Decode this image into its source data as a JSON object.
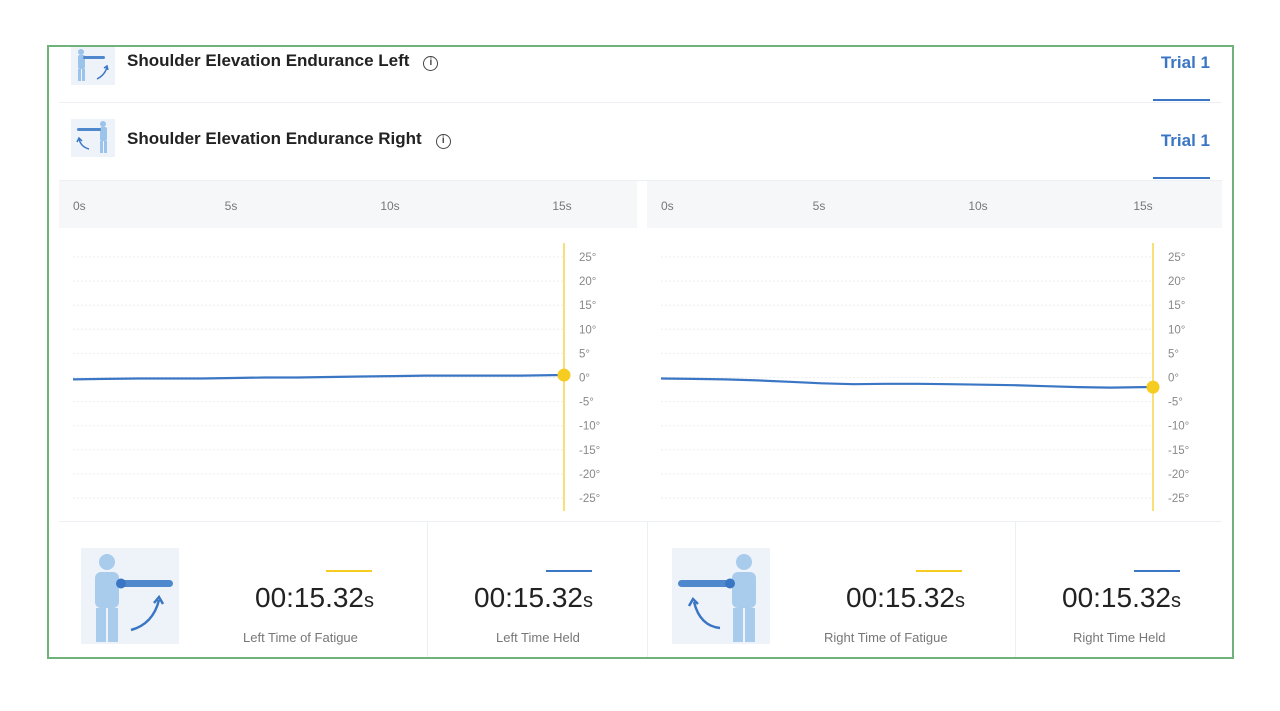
{
  "rows": [
    {
      "title": "Shoulder Elevation Endurance Left",
      "trial": "Trial 1"
    },
    {
      "title": "Shoulder Elevation Endurance Right",
      "trial": "Trial 1"
    }
  ],
  "colors": {
    "accent": "#3a76c4",
    "marker": "#f5cc1f",
    "frame": "#6fb37a"
  },
  "icons": {
    "info": "info-icon",
    "left_figure": "left-shoulder-figure-icon",
    "right_figure": "right-shoulder-figure-icon"
  },
  "chart_data": [
    {
      "type": "line",
      "x_ticks": [
        "0s",
        "5s",
        "10s",
        "15s"
      ],
      "y_ticks": [
        "25°",
        "20°",
        "15°",
        "10°",
        "5°",
        "0°",
        "-5°",
        "-10°",
        "-15°",
        "-20°",
        "-25°"
      ],
      "xlim": [
        0,
        15.32
      ],
      "ylim": [
        -25,
        25
      ],
      "grid": true,
      "series": [
        {
          "x": [
            0,
            1,
            2,
            3,
            4,
            5,
            6,
            7,
            8,
            9,
            10,
            11,
            12,
            13,
            14,
            15,
            15.32
          ],
          "y": [
            -0.4,
            -0.3,
            -0.2,
            -0.2,
            -0.2,
            -0.1,
            0,
            0,
            0.1,
            0.2,
            0.3,
            0.4,
            0.4,
            0.4,
            0.4,
            0.5,
            0.5
          ]
        }
      ],
      "end_marker": {
        "x": 15.32,
        "y": 0.5
      }
    },
    {
      "type": "line",
      "x_ticks": [
        "0s",
        "5s",
        "10s",
        "15s"
      ],
      "y_ticks": [
        "25°",
        "20°",
        "15°",
        "10°",
        "5°",
        "0°",
        "-5°",
        "-10°",
        "-15°",
        "-20°",
        "-25°"
      ],
      "xlim": [
        0,
        15.32
      ],
      "ylim": [
        -25,
        25
      ],
      "grid": true,
      "series": [
        {
          "x": [
            0,
            1,
            2,
            3,
            4,
            5,
            6,
            7,
            8,
            9,
            10,
            11,
            12,
            13,
            14,
            15,
            15.32
          ],
          "y": [
            -0.2,
            -0.3,
            -0.4,
            -0.6,
            -0.9,
            -1.2,
            -1.4,
            -1.3,
            -1.3,
            -1.4,
            -1.5,
            -1.6,
            -1.8,
            -2.0,
            -2.1,
            -2.0,
            -2.0
          ]
        }
      ],
      "end_marker": {
        "x": 15.32,
        "y": -2.0
      }
    }
  ],
  "stats": [
    {
      "value": "00:15.32",
      "unit": "s",
      "label": "Left Time of Fatigue"
    },
    {
      "value": "00:15.32",
      "unit": "s",
      "label": "Left Time Held"
    },
    {
      "value": "00:15.32",
      "unit": "s",
      "label": "Right Time of Fatigue"
    },
    {
      "value": "00:15.32",
      "unit": "s",
      "label": "Right Time Held"
    }
  ]
}
